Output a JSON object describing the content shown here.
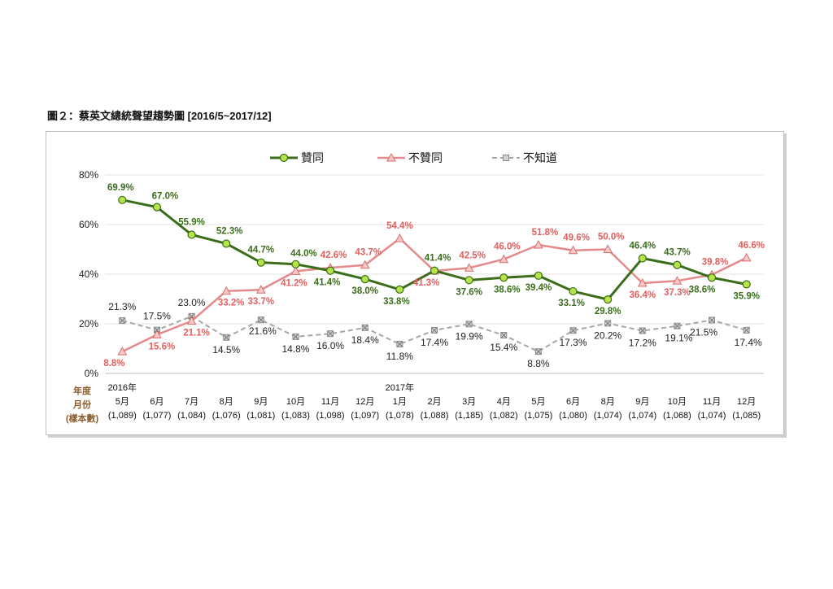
{
  "title": "圖２：蔡英文總統聲望趨勢圖 [2016/5~2017/12]",
  "colors": {
    "approve": "#3a6e1b",
    "approve_marker": "#b6e34a",
    "disapprove": "#e48a8a",
    "unknown": "#a6a6a6"
  },
  "chart_data": {
    "type": "line",
    "ylim": [
      0,
      80
    ],
    "yticks": [
      "0%",
      "20%",
      "40%",
      "60%",
      "80%"
    ],
    "xlabel_left": [
      "年度",
      "月份",
      "(樣本數)"
    ],
    "categories": [
      {
        "year": "2016年",
        "month": "5月",
        "n": "(1,089)"
      },
      {
        "year": "",
        "month": "6月",
        "n": "(1,077)"
      },
      {
        "year": "",
        "month": "7月",
        "n": "(1,084)"
      },
      {
        "year": "",
        "month": "8月",
        "n": "(1,076)"
      },
      {
        "year": "",
        "month": "9月",
        "n": "(1,081)"
      },
      {
        "year": "",
        "month": "10月",
        "n": "(1,083)"
      },
      {
        "year": "",
        "month": "11月",
        "n": "(1,098)"
      },
      {
        "year": "",
        "month": "12月",
        "n": "(1,097)"
      },
      {
        "year": "2017年",
        "month": "1月",
        "n": "(1,078)"
      },
      {
        "year": "",
        "month": "2月",
        "n": "(1,088)"
      },
      {
        "year": "",
        "month": "3月",
        "n": "(1,185)"
      },
      {
        "year": "",
        "month": "4月",
        "n": "(1,082)"
      },
      {
        "year": "",
        "month": "5月",
        "n": "(1,075)"
      },
      {
        "year": "",
        "month": "6月",
        "n": "(1,080)"
      },
      {
        "year": "",
        "month": "8月",
        "n": "(1,074)"
      },
      {
        "year": "",
        "month": "9月",
        "n": "(1,074)"
      },
      {
        "year": "",
        "month": "10月",
        "n": "(1,068)"
      },
      {
        "year": "",
        "month": "11月",
        "n": "(1,074)"
      },
      {
        "year": "",
        "month": "12月",
        "n": "(1,085)"
      }
    ],
    "series": [
      {
        "key": "approve",
        "name": "贊同",
        "values": [
          69.9,
          67.0,
          55.9,
          52.3,
          44.7,
          44.0,
          41.4,
          38.0,
          33.8,
          41.4,
          37.6,
          38.6,
          39.4,
          33.1,
          29.8,
          46.4,
          43.7,
          38.6,
          35.9
        ],
        "labels": [
          "69.9%",
          "67.0%",
          "55.9%",
          "52.3%",
          "44.7%",
          "44.0%",
          "41.4%",
          "38.0%",
          "33.8%",
          "41.4%",
          "37.6%",
          "38.6%",
          "39.4%",
          "33.1%",
          "29.8%",
          "46.4%",
          "43.7%",
          "38.6%",
          "35.9%"
        ]
      },
      {
        "key": "disapprove",
        "name": "不贊同",
        "values": [
          8.8,
          15.6,
          21.1,
          33.2,
          33.7,
          41.2,
          42.6,
          43.7,
          54.4,
          41.3,
          42.5,
          46.0,
          51.8,
          49.6,
          50.0,
          36.4,
          37.3,
          39.8,
          46.6
        ],
        "labels": [
          "8.8%",
          "15.6%",
          "21.1%",
          "33.2%",
          "33.7%",
          "41.2%",
          "42.6%",
          "43.7%",
          "54.4%",
          "41.3%",
          "42.5%",
          "46.0%",
          "51.8%",
          "49.6%",
          "50.0%",
          "36.4%",
          "37.3%",
          "39.8%",
          "46.6%"
        ]
      },
      {
        "key": "unknown",
        "name": "不知道",
        "values": [
          21.3,
          17.5,
          23.0,
          14.5,
          21.6,
          14.8,
          16.0,
          18.4,
          11.8,
          17.4,
          19.9,
          15.4,
          8.8,
          17.3,
          20.2,
          17.2,
          19.1,
          21.5,
          17.4
        ],
        "labels": [
          "21.3%",
          "17.5%",
          "23.0%",
          "14.5%",
          "21.6%",
          "14.8%",
          "16.0%",
          "18.4%",
          "11.8%",
          "17.4%",
          "19.9%",
          "15.4%",
          "8.8%",
          "17.3%",
          "20.2%",
          "17.2%",
          "19.1%",
          "21.5%",
          "17.4%"
        ]
      }
    ]
  }
}
